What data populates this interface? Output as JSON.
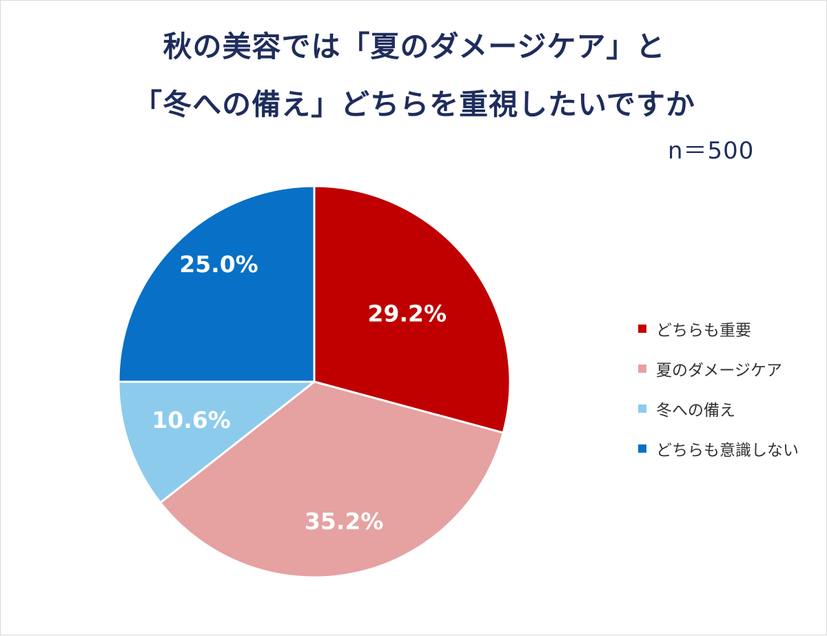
{
  "title_line1": "秋の美容では「夏のダメージケア」と",
  "title_line2": "「冬への備え」どちらを重視したいですか",
  "sample_size": "n＝500",
  "chart_data": {
    "type": "pie",
    "title": "秋の美容では「夏のダメージケア」と「冬への備え」どちらを重視したいですか",
    "n": "n＝500",
    "start": "12 o'clock, clockwise",
    "legend_position": "right",
    "slices": [
      {
        "label": "どちらも重要",
        "value": 29.2,
        "display": "29.2%",
        "color": "#c00000"
      },
      {
        "label": "夏のダメージケア",
        "value": 35.2,
        "display": "35.2%",
        "color": "#e6a1a1"
      },
      {
        "label": "冬への備え",
        "value": 10.6,
        "display": "10.6%",
        "color": "#8dcbec"
      },
      {
        "label": "どちらも意識しない",
        "value": 25.0,
        "display": "25.0%",
        "color": "#0870c6"
      }
    ]
  }
}
